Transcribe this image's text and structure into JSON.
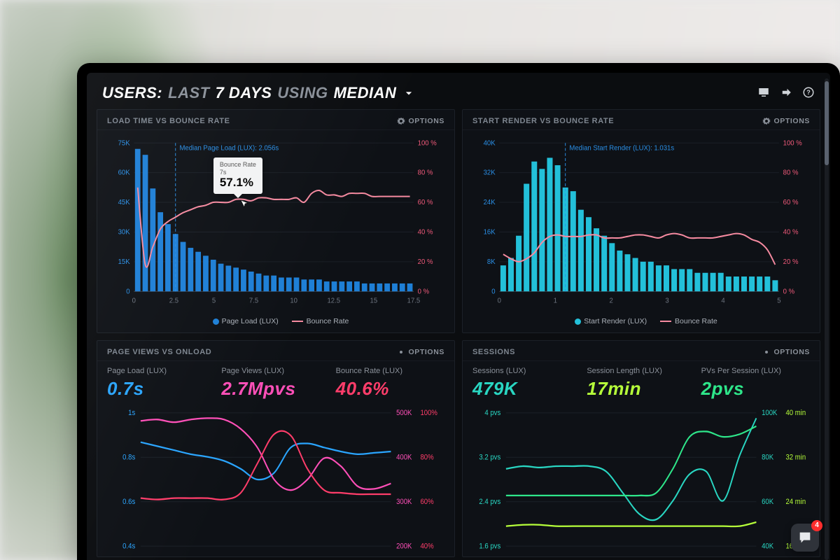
{
  "header": {
    "prefix": "USERS:",
    "dim1": "LAST",
    "num": "7 DAYS",
    "dim2": "USING",
    "suffix": "MEDIAN"
  },
  "options_label": "OPTIONS",
  "panels": {
    "load_bounce": {
      "title": "LOAD TIME VS BOUNCE RATE",
      "type": "bar+line",
      "x_ticks": [
        "0",
        "2.5",
        "5",
        "7.5",
        "10",
        "12.5",
        "15",
        "17.5"
      ],
      "y_left_ticks": [
        "0",
        "15K",
        "30K",
        "45K",
        "60K",
        "75K"
      ],
      "y_left_max": 75,
      "y_right_ticks": [
        "0 %",
        "20 %",
        "40 %",
        "60 %",
        "80 %",
        "100 %"
      ],
      "bar_color": "#1e7fd6",
      "line_color": "#f58aa0",
      "bars": [
        72,
        69,
        52,
        40,
        34,
        29,
        25,
        22,
        20,
        18,
        16,
        14,
        13,
        12,
        11,
        10,
        9,
        8,
        8,
        7,
        7,
        7,
        6,
        6,
        6,
        5,
        5,
        5,
        5,
        5,
        4,
        4,
        4,
        4,
        4,
        4,
        4
      ],
      "line": [
        70,
        18,
        30,
        42,
        47,
        50,
        53,
        55,
        57,
        58,
        60,
        60,
        60,
        62,
        62,
        61,
        63,
        63,
        62,
        62,
        62,
        63,
        60,
        66,
        68,
        65,
        65,
        64,
        66,
        66,
        66,
        64,
        64,
        64,
        64,
        64,
        64
      ],
      "median_index": 5,
      "median_label": "Median Page Load (LUX): 2.056s",
      "legend_bar": "Page Load (LUX)",
      "legend_line": "Bounce Rate",
      "tooltip": {
        "title": "Bounce Rate",
        "sub": "7s",
        "value": "57.1%",
        "at_index": 14
      }
    },
    "render_bounce": {
      "title": "START RENDER VS BOUNCE RATE",
      "type": "bar+line",
      "x_ticks": [
        "0",
        "1",
        "2",
        "3",
        "4",
        "5"
      ],
      "y_left_ticks": [
        "0",
        "8K",
        "16K",
        "24K",
        "32K",
        "40K"
      ],
      "y_left_max": 40,
      "y_right_ticks": [
        "0 %",
        "20 %",
        "40 %",
        "60 %",
        "80 %",
        "100 %"
      ],
      "bar_color": "#23c0d9",
      "line_color": "#f58aa0",
      "bars": [
        7,
        9,
        15,
        29,
        35,
        33,
        36,
        34,
        28,
        27,
        22,
        20,
        17,
        15,
        13,
        11,
        10,
        9,
        8,
        8,
        7,
        7,
        6,
        6,
        6,
        5,
        5,
        5,
        5,
        4,
        4,
        4,
        4,
        4,
        4,
        3
      ],
      "line": [
        25,
        22,
        20,
        22,
        26,
        33,
        37,
        38,
        37,
        37,
        37,
        38,
        38,
        36,
        36,
        36,
        37,
        38,
        38,
        37,
        36,
        38,
        39,
        38,
        36,
        36,
        36,
        36,
        37,
        38,
        39,
        38,
        35,
        33,
        28,
        18
      ],
      "median_index": 8,
      "median_label": "Median Start Render (LUX): 1.031s",
      "legend_bar": "Start Render (LUX)",
      "legend_line": "Bounce Rate"
    },
    "pv_onload": {
      "title": "PAGE VIEWS VS ONLOAD",
      "metrics": [
        {
          "label": "Page Load (LUX)",
          "value": "0.7s",
          "color": "blue"
        },
        {
          "label": "Page Views (LUX)",
          "value": "2.7Mpvs",
          "color": "pink"
        },
        {
          "label": "Bounce Rate (LUX)",
          "value": "40.6%",
          "color": "rose"
        }
      ],
      "y_left_ticks": [
        "1s",
        "0.8s",
        "0.6s",
        "0.4s"
      ],
      "y_left_values": [
        1.0,
        0.8,
        0.6,
        0.4
      ],
      "y_right1_ticks": [
        "500K",
        "400K",
        "300K",
        "200K"
      ],
      "y_right1_color": "#ff4fb8",
      "y_right2_ticks": [
        "100%",
        "80%",
        "60%",
        "40%"
      ],
      "y_right2_color": "#ff3d6a",
      "series": {
        "blue": {
          "color": "#2aa5ff",
          "y": [
            0.78,
            0.75,
            0.72,
            0.69,
            0.67,
            0.64,
            0.58,
            0.5,
            0.55,
            0.74,
            0.77,
            0.74,
            0.71,
            0.69,
            0.7,
            0.71
          ]
        },
        "pink": {
          "color": "#ff4fb8",
          "y": [
            0.94,
            0.95,
            0.93,
            0.95,
            0.96,
            0.95,
            0.88,
            0.74,
            0.5,
            0.42,
            0.5,
            0.66,
            0.6,
            0.45,
            0.43,
            0.47
          ]
        },
        "rose": {
          "color": "#ff3d6a",
          "y": [
            0.36,
            0.35,
            0.36,
            0.36,
            0.36,
            0.35,
            0.4,
            0.62,
            0.84,
            0.83,
            0.58,
            0.42,
            0.4,
            0.39,
            0.39,
            0.39
          ]
        }
      }
    },
    "sessions": {
      "title": "SESSIONS",
      "metrics": [
        {
          "label": "Sessions (LUX)",
          "value": "479K",
          "color": "teal"
        },
        {
          "label": "Session Length (LUX)",
          "value": "17min",
          "color": "lime"
        },
        {
          "label": "PVs Per Session (LUX)",
          "value": "2pvs",
          "color": "green"
        }
      ],
      "y_left_ticks": [
        "4 pvs",
        "3.2 pvs",
        "2.4 pvs",
        "1.6 pvs"
      ],
      "y_left_values": [
        4.0,
        3.2,
        2.4,
        1.6
      ],
      "y_right1_ticks": [
        "100K",
        "80K",
        "60K",
        "40K"
      ],
      "y_right1_color": "#29d6c2",
      "y_right2_ticks": [
        "40 min",
        "32 min",
        "24 min",
        "16 min"
      ],
      "y_right2_color": "#b6ff3a",
      "series": {
        "teal": {
          "color": "#29d6c2",
          "y": [
            0.58,
            0.6,
            0.59,
            0.6,
            0.6,
            0.6,
            0.56,
            0.4,
            0.24,
            0.2,
            0.34,
            0.54,
            0.56,
            0.34,
            0.68,
            0.96
          ]
        },
        "lime": {
          "color": "#b6ff3a",
          "y": [
            0.15,
            0.16,
            0.16,
            0.15,
            0.15,
            0.15,
            0.15,
            0.15,
            0.15,
            0.15,
            0.15,
            0.15,
            0.15,
            0.15,
            0.15,
            0.18
          ]
        },
        "green": {
          "color": "#2ee68a",
          "y": [
            0.38,
            0.38,
            0.38,
            0.38,
            0.38,
            0.38,
            0.38,
            0.38,
            0.38,
            0.4,
            0.58,
            0.82,
            0.86,
            0.82,
            0.84,
            0.9
          ]
        }
      }
    }
  },
  "chat_badge": "4",
  "colors": {
    "panel_bg": "#0e1116",
    "screen_bg": "#0b0d10",
    "grid": "#1a1f26"
  }
}
